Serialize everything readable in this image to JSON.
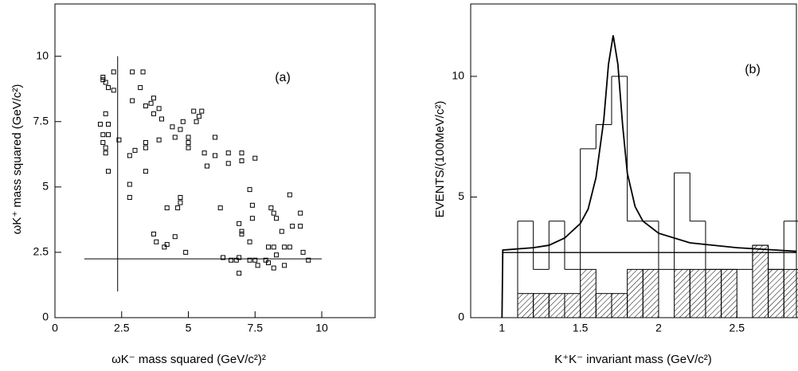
{
  "chart_data": [
    {
      "type": "scatter",
      "annotation": "(a)",
      "x_label": "ωK⁻ mass squared (GeV/c²)²",
      "y_label": "ωK⁺ mass squared (GeV/c²)",
      "xlim": [
        0,
        12
      ],
      "ylim": [
        0,
        12
      ],
      "xticks": [
        0,
        2.5,
        5,
        7.5,
        10
      ],
      "yticks": [
        0,
        2.5,
        5,
        7.5,
        10
      ],
      "marker_color": "#000000",
      "x": [
        1.8,
        1.8,
        1.9,
        2.0,
        2.2,
        2.2,
        1.7,
        1.8,
        1.8,
        1.9,
        2.0,
        2.0,
        1.9,
        1.9,
        2.0,
        2.4,
        2.9,
        3.3,
        3.2,
        2.9,
        3.4,
        3.6,
        3.7,
        3.9,
        3.7,
        4.0,
        2.8,
        3.0,
        3.4,
        3.4,
        3.9,
        3.4,
        2.8,
        2.8,
        4.2,
        4.4,
        4.5,
        4.7,
        4.8,
        5.0,
        5.0,
        5.2,
        5.4,
        5.5,
        5.3,
        5.0,
        4.6,
        4.7,
        4.7,
        3.7,
        3.8,
        4.1,
        4.2,
        4.5,
        4.9,
        5.7,
        5.6,
        6.0,
        6.0,
        6.2,
        6.5,
        6.5,
        7.0,
        7.0,
        7.5,
        6.3,
        6.6,
        6.8,
        6.9,
        6.9,
        7.0,
        7.0,
        6.9,
        7.3,
        7.3,
        7.3,
        7.4,
        7.4,
        7.5,
        7.6,
        7.9,
        8.0,
        8.0,
        8.2,
        8.2,
        8.3,
        8.1,
        8.2,
        8.3,
        8.5,
        8.6,
        8.8,
        8.8,
        8.9,
        8.6,
        9.2,
        9.2,
        9.3,
        9.5
      ],
      "y": [
        9.1,
        9.2,
        9.0,
        8.8,
        8.7,
        9.4,
        7.4,
        7.0,
        6.7,
        7.8,
        7.4,
        7.0,
        6.5,
        6.3,
        5.6,
        6.8,
        9.4,
        9.4,
        8.8,
        8.3,
        8.1,
        8.2,
        8.4,
        8.0,
        7.8,
        7.6,
        6.2,
        6.4,
        6.7,
        6.5,
        6.8,
        5.6,
        5.1,
        4.6,
        4.2,
        7.3,
        6.9,
        7.2,
        7.5,
        6.9,
        6.7,
        7.9,
        7.7,
        7.9,
        7.5,
        6.5,
        4.2,
        4.4,
        4.6,
        3.2,
        2.9,
        2.7,
        2.8,
        3.1,
        2.5,
        5.8,
        6.3,
        6.2,
        6.9,
        4.2,
        6.3,
        5.9,
        6.3,
        6.0,
        6.1,
        2.3,
        2.2,
        2.2,
        2.3,
        3.6,
        3.3,
        3.2,
        1.7,
        2.9,
        2.2,
        4.9,
        4.3,
        3.8,
        2.2,
        2.0,
        2.2,
        2.1,
        2.7,
        1.9,
        2.7,
        2.4,
        4.2,
        4.0,
        3.8,
        3.3,
        2.7,
        2.7,
        4.7,
        3.5,
        2.0,
        4.0,
        3.5,
        2.5,
        2.2
      ],
      "cuts": [
        {
          "x": [
            2.35,
            2.35
          ],
          "y": [
            1,
            10
          ]
        },
        {
          "x": [
            1.1,
            10
          ],
          "y": [
            2.25,
            2.25
          ]
        }
      ]
    },
    {
      "type": "histogram",
      "annotation": "(b)",
      "x_label": "K⁺K⁻ invariant mass (GeV/c²)",
      "y_label": "EVENTS/(100MeV/c²)",
      "xlim": [
        0.8,
        2.88
      ],
      "ylim": [
        0,
        13
      ],
      "xticks": [
        1,
        1.5,
        2,
        2.5
      ],
      "yticks": [
        0,
        5,
        10
      ],
      "bins": [
        1.0,
        1.1,
        1.2,
        1.3,
        1.4,
        1.5,
        1.6,
        1.7,
        1.8,
        1.9,
        2.0,
        2.1,
        2.2,
        2.3,
        2.4,
        2.5,
        2.6,
        2.7,
        2.8,
        2.9
      ],
      "counts": [
        0,
        4,
        2,
        4,
        2,
        7,
        8,
        10,
        4,
        4,
        2,
        6,
        4,
        2,
        2,
        2,
        3,
        2,
        4
      ],
      "background_counts": [
        0,
        1,
        1,
        1,
        1,
        2,
        1,
        1,
        2,
        2,
        0,
        2,
        2,
        2,
        2,
        0,
        3,
        2,
        2
      ],
      "fit": {
        "x": [
          1.0,
          1.005,
          1.1,
          1.2,
          1.3,
          1.4,
          1.5,
          1.55,
          1.6,
          1.65,
          1.68,
          1.71,
          1.74,
          1.77,
          1.8,
          1.85,
          1.9,
          2.0,
          2.2,
          2.5,
          2.88
        ],
        "y": [
          0,
          2.8,
          2.85,
          2.9,
          3.0,
          3.3,
          3.9,
          4.5,
          5.8,
          8.2,
          10.5,
          11.7,
          10.5,
          8.0,
          6.0,
          4.6,
          4.0,
          3.5,
          3.1,
          2.9,
          2.75
        ]
      },
      "background_line": {
        "x": [
          1.0,
          2.88
        ],
        "y": [
          2.7,
          2.7
        ]
      }
    }
  ]
}
